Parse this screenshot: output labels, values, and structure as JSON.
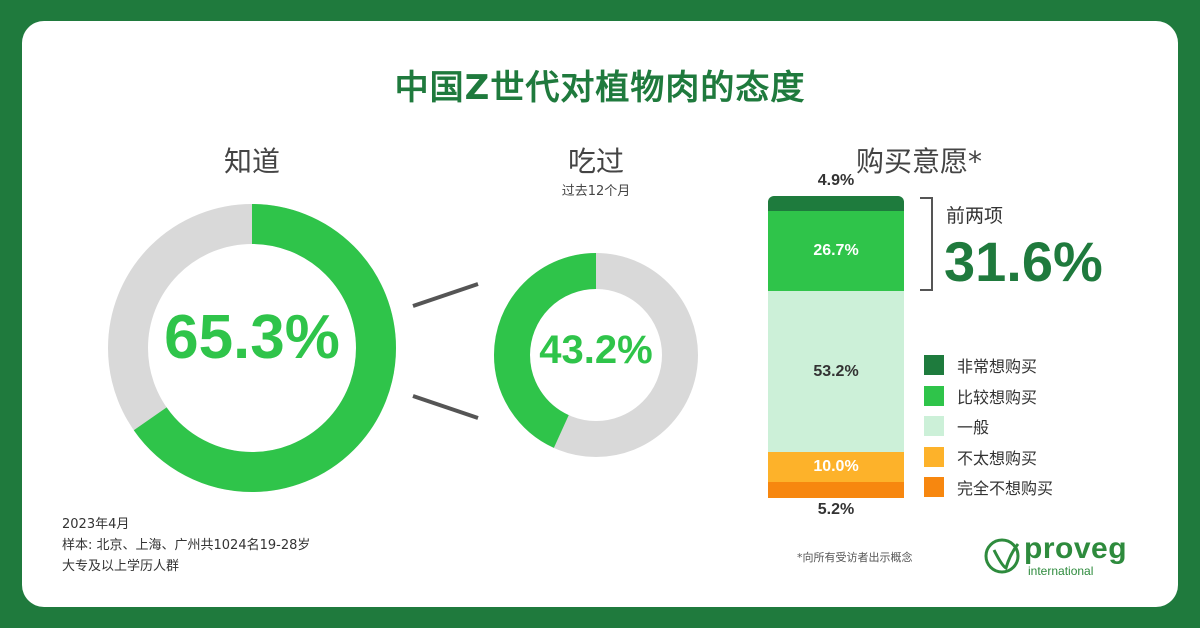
{
  "title": "中国Z世代对植物肉的态度",
  "awareness": {
    "label": "知道",
    "value": 65.3,
    "value_text": "65.3%"
  },
  "tried": {
    "label": "吃过",
    "sublabel": "过去12个月",
    "value": 43.2,
    "value_text": "43.2%"
  },
  "purchase": {
    "label": "购买意愿*",
    "bracket_label": "前两项",
    "top_two_text": "31.6%",
    "segments": [
      {
        "name": "非常想购买",
        "value": 4.9,
        "value_text": "4.9%",
        "color": "#1e7b3d"
      },
      {
        "name": "比较想购买",
        "value": 26.7,
        "value_text": "26.7%",
        "color": "#2fc44a"
      },
      {
        "name": "一般",
        "value": 53.2,
        "value_text": "53.2%",
        "color": "#ccf0d8"
      },
      {
        "name": "不太想购买",
        "value": 10.0,
        "value_text": "10.0%",
        "color": "#fdb22a"
      },
      {
        "name": "完全不想购买",
        "value": 5.2,
        "value_text": "5.2%",
        "color": "#f7870f"
      }
    ]
  },
  "notes": {
    "line1": "2023年4月",
    "line2": "样本: 北京、上海、广州共1024名19-28岁",
    "line3": "大专及以上学历人群"
  },
  "footnote": "*向所有受访者出示概念",
  "logo": {
    "name": "proveg",
    "sub": "international"
  },
  "colors": {
    "brand": "#1f7a3d",
    "accent": "#2fc44a",
    "track": "#d9d9d9"
  },
  "chart_data": [
    {
      "type": "pie",
      "title": "知道",
      "labels": [
        "知道"
      ],
      "values": [
        65.3
      ]
    },
    {
      "type": "pie",
      "title": "吃过",
      "subtitle": "过去12个月",
      "labels": [
        "吃过"
      ],
      "values": [
        43.2
      ]
    },
    {
      "type": "bar",
      "title": "购买意愿*",
      "categories": [
        "非常想购买",
        "比较想购买",
        "一般",
        "不太想购买",
        "完全不想购买"
      ],
      "values": [
        4.9,
        26.7,
        53.2,
        10.0,
        5.2
      ]
    }
  ]
}
